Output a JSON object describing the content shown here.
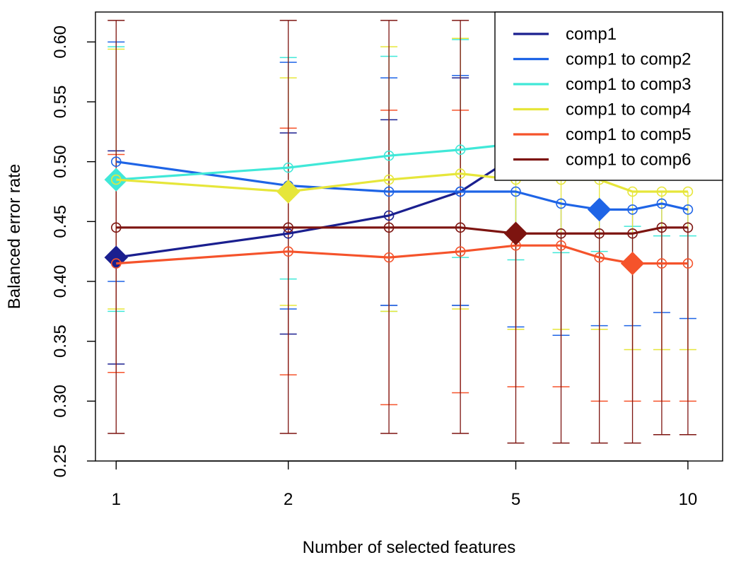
{
  "chart_data": {
    "type": "line",
    "title": "",
    "xlabel": "Number of selected features",
    "ylabel": "Balanced error rate",
    "x_scale": "log",
    "x": [
      1,
      2,
      3,
      4,
      5,
      6,
      7,
      8,
      9,
      10
    ],
    "xticks": [
      "1",
      "2",
      "5",
      "10"
    ],
    "yticks": [
      "0.25",
      "0.30",
      "0.35",
      "0.40",
      "0.45",
      "0.50",
      "0.55",
      "0.60"
    ],
    "xlim": [
      0.92,
      11.5
    ],
    "ylim": [
      0.25,
      0.625
    ],
    "legend_position": "top-right",
    "series": [
      {
        "name": "comp1",
        "color": "#1a1f8f",
        "values": [
          0.42,
          0.44,
          0.455,
          0.475,
          0.505,
          null,
          null,
          null,
          null,
          null
        ],
        "err_low": [
          0.331,
          0.356,
          0.38,
          0.38,
          null,
          null,
          null,
          null,
          null,
          null
        ],
        "err_high": [
          0.509,
          0.524,
          0.535,
          0.57,
          null,
          null,
          null,
          null,
          null,
          null
        ],
        "optimal_x": 1
      },
      {
        "name": "comp1 to comp2",
        "color": "#1e64e6",
        "values": [
          0.5,
          0.48,
          0.475,
          0.475,
          0.475,
          0.465,
          0.46,
          0.46,
          0.465,
          0.46
        ],
        "err_low": [
          0.4,
          0.377,
          0.38,
          0.38,
          0.362,
          0.355,
          0.363,
          0.363,
          0.374,
          0.369
        ],
        "err_high": [
          0.6,
          0.583,
          0.57,
          0.572,
          null,
          null,
          null,
          null,
          null,
          null
        ],
        "optimal_x": 7
      },
      {
        "name": "comp1 to comp3",
        "color": "#40e8d8",
        "values": [
          0.485,
          0.495,
          0.505,
          0.51,
          0.515,
          null,
          null,
          null,
          null,
          null
        ],
        "err_low": [
          0.375,
          0.402,
          0.375,
          0.42,
          0.418,
          0.424,
          0.425,
          0.446,
          0.438,
          0.438
        ],
        "err_high": [
          0.596,
          0.587,
          0.588,
          0.602,
          null,
          null,
          null,
          null,
          null,
          null
        ],
        "optimal_x": 1
      },
      {
        "name": "comp1 to comp4",
        "color": "#e6e63a",
        "values": [
          0.485,
          0.475,
          0.485,
          0.49,
          0.485,
          0.485,
          0.485,
          0.475,
          0.475,
          0.475
        ],
        "err_low": [
          0.377,
          0.38,
          0.375,
          0.377,
          0.36,
          0.36,
          0.36,
          0.343,
          0.343,
          0.343
        ],
        "err_high": [
          0.594,
          0.57,
          0.596,
          0.603,
          null,
          null,
          null,
          null,
          null,
          null
        ],
        "optimal_x": 2
      },
      {
        "name": "comp1 to comp5",
        "color": "#f5532b",
        "values": [
          0.415,
          0.425,
          0.42,
          0.425,
          0.43,
          0.43,
          0.42,
          0.415,
          0.415,
          0.415
        ],
        "err_low": [
          0.324,
          0.322,
          0.297,
          0.307,
          0.312,
          0.312,
          0.3,
          0.3,
          0.3,
          0.3
        ],
        "err_high": [
          0.506,
          0.528,
          0.543,
          0.543,
          null,
          null,
          null,
          null,
          null,
          null
        ],
        "optimal_x": 8
      },
      {
        "name": "comp1 to comp6",
        "color": "#7d1410",
        "values": [
          0.445,
          0.445,
          0.445,
          0.445,
          0.44,
          0.44,
          0.44,
          0.44,
          0.445,
          0.445
        ],
        "err_low": [
          0.273,
          0.273,
          0.273,
          0.273,
          0.265,
          0.265,
          0.265,
          0.265,
          0.272,
          0.272
        ],
        "err_high": [
          0.618,
          0.618,
          0.618,
          0.618,
          null,
          null,
          null,
          null,
          null,
          null
        ],
        "optimal_x": 5
      }
    ]
  }
}
